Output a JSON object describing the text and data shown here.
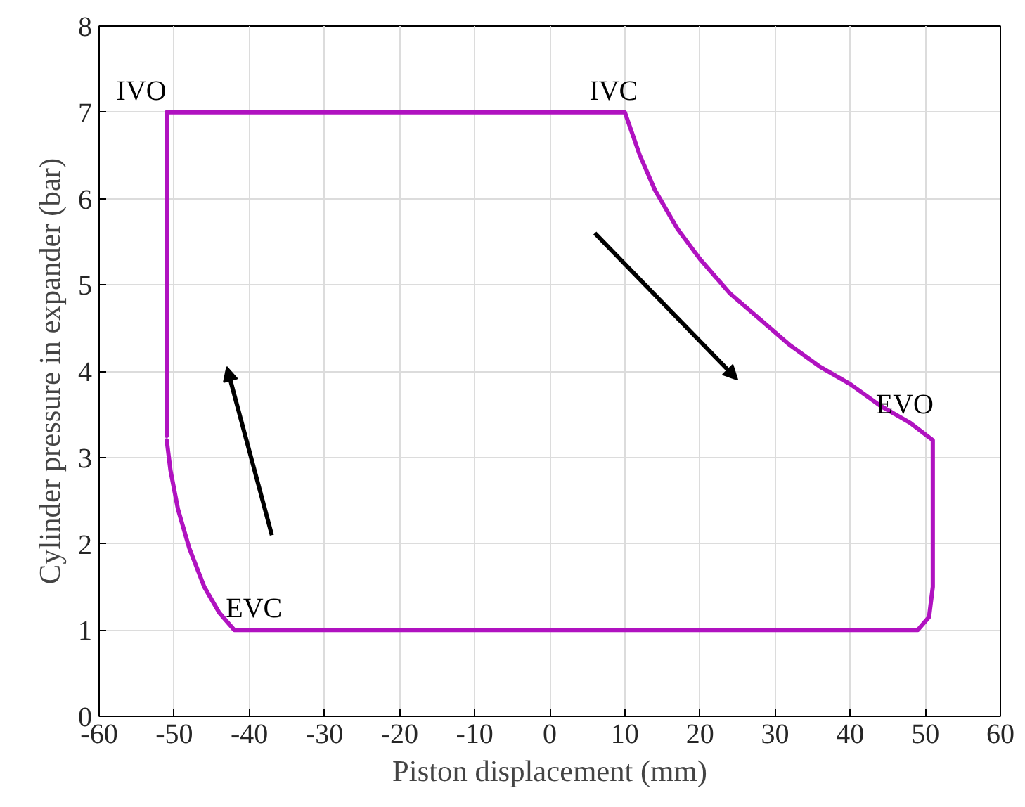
{
  "chart_data": {
    "type": "line",
    "xlabel": "Piston displacement (mm)",
    "ylabel": "Cylinder pressure in expander (bar)",
    "series": [
      {
        "color": "#b012c0",
        "x": [
          -51,
          -51,
          10,
          12,
          14,
          17,
          20,
          24,
          28,
          32,
          36,
          40,
          44,
          48,
          51,
          51,
          50.5,
          49,
          -42,
          -44,
          -46,
          -48,
          -49.5,
          -50.5,
          -51
        ],
        "values": [
          3.25,
          7,
          7,
          6.5,
          6.1,
          5.65,
          5.3,
          4.9,
          4.6,
          4.3,
          4.05,
          3.85,
          3.6,
          3.4,
          3.2,
          1.5,
          1.15,
          1,
          1,
          1.2,
          1.5,
          1.95,
          2.4,
          2.85,
          3.2
        ]
      }
    ],
    "xlim": [
      -60,
      60
    ],
    "xticks": [
      -60,
      -50,
      -40,
      -30,
      -20,
      -10,
      0,
      10,
      20,
      30,
      40,
      50,
      60
    ],
    "ylim": [
      0,
      8
    ],
    "yticks": [
      0,
      1,
      2,
      3,
      4,
      5,
      6,
      7,
      8
    ],
    "grid": true,
    "marker": "none",
    "line_style": "solid",
    "annotations": [
      {
        "text": "IVO",
        "x": -51,
        "y": 7
      },
      {
        "text": "IVC",
        "x": 10,
        "y": 7
      },
      {
        "text": "EVO",
        "x": 51,
        "y": 3.2
      },
      {
        "text": "EVC",
        "x": -42,
        "y": 1
      }
    ]
  }
}
